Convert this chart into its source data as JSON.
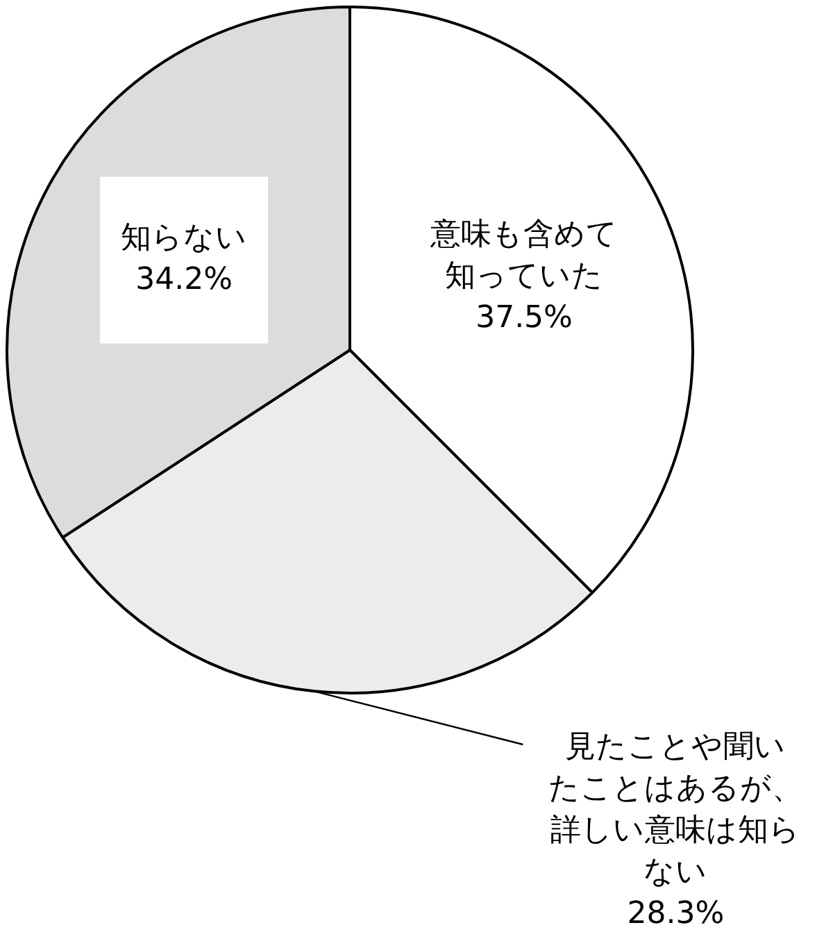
{
  "chart_data": {
    "type": "pie",
    "categories": [
      "意味も含めて知っていた",
      "見たことや聞いたことはあるが、詳しい意味は知らない",
      "知らない"
    ],
    "values": [
      37.5,
      28.3,
      34.2
    ],
    "colors": [
      "#ffffff",
      "#ececec",
      "#dcdcdc"
    ],
    "value_labels": [
      "37.5%",
      "28.3%",
      "34.2%"
    ],
    "legend": false
  }
}
